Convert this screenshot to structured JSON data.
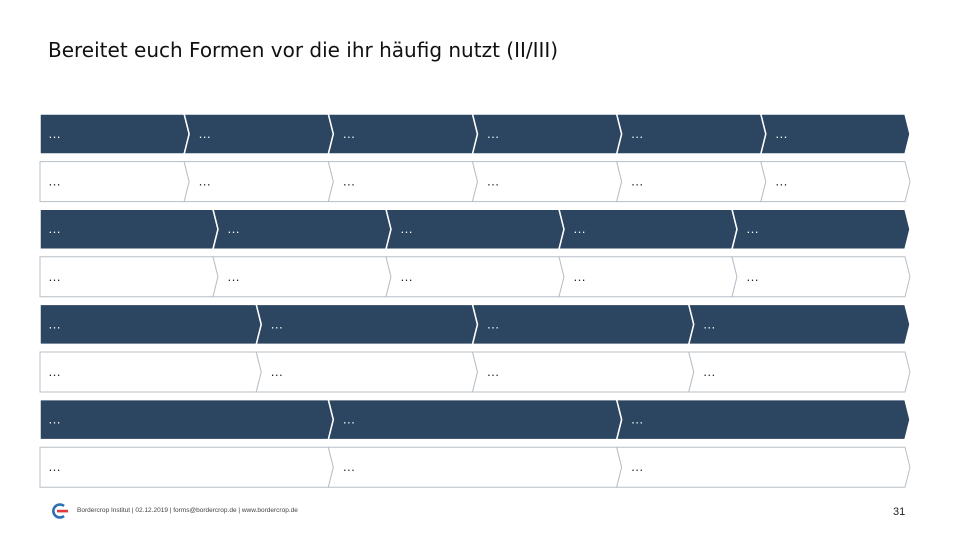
{
  "slide": {
    "title": "Bereitet euch Formen vor die ihr häufig nutzt (II/III)",
    "footer": "Bordercrop Institut | 02.12.2019 | forms@bordercrop.de | www.bordercrop.de",
    "page_number": "31"
  },
  "colors": {
    "dark_fill": "#2c4561",
    "light_fill": "#ffffff",
    "outline": "#b8bfc8",
    "logo_red": "#e23a3a",
    "logo_blue": "#2b6fb6"
  },
  "rows": [
    {
      "style": "dark",
      "segments": 6,
      "labels": [
        "…",
        "…",
        "…",
        "…",
        "…",
        "…"
      ]
    },
    {
      "style": "light",
      "segments": 6,
      "labels": [
        "…",
        "…",
        "…",
        "…",
        "…",
        "…"
      ]
    },
    {
      "style": "dark",
      "segments": 5,
      "labels": [
        "…",
        "…",
        "…",
        "…",
        "…"
      ]
    },
    {
      "style": "light",
      "segments": 5,
      "labels": [
        "…",
        "…",
        "…",
        "…",
        "…"
      ]
    },
    {
      "style": "dark",
      "segments": 4,
      "labels": [
        "…",
        "…",
        "…",
        "…"
      ]
    },
    {
      "style": "light",
      "segments": 4,
      "labels": [
        "…",
        "…",
        "…",
        "…"
      ]
    },
    {
      "style": "dark",
      "segments": 3,
      "labels": [
        "…",
        "…",
        "…"
      ]
    },
    {
      "style": "light",
      "segments": 3,
      "labels": [
        "…",
        "…",
        "…"
      ]
    }
  ]
}
